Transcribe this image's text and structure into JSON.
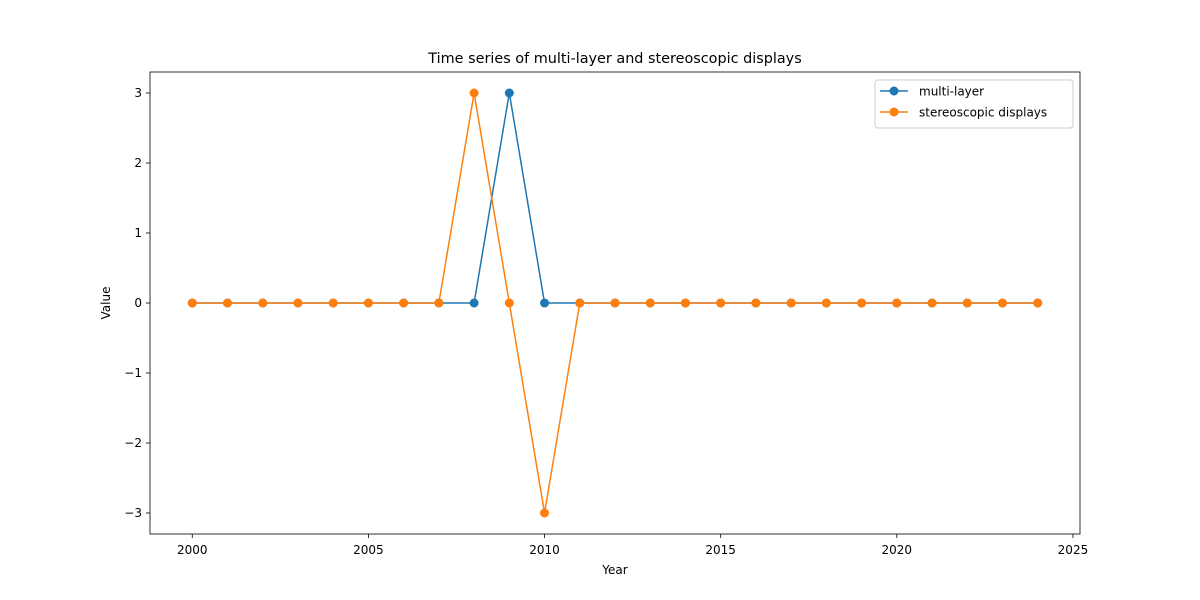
{
  "chart_data": {
    "type": "line",
    "title": "Time series of multi-layer and stereoscopic displays",
    "xlabel": "Year",
    "ylabel": "Value",
    "xlim": [
      1998.8,
      2025.2
    ],
    "ylim": [
      -3.3,
      3.3
    ],
    "xticks": [
      2000,
      2005,
      2010,
      2015,
      2020,
      2025
    ],
    "yticks": [
      3,
      2,
      1,
      0,
      -1,
      -2,
      -3
    ],
    "ytick_labels": [
      "3",
      "2",
      "1",
      "0",
      "−1",
      "−2",
      "−3"
    ],
    "grid": false,
    "legend_position": "top-right",
    "x": [
      2000,
      2001,
      2002,
      2003,
      2004,
      2005,
      2006,
      2007,
      2008,
      2009,
      2010,
      2011,
      2012,
      2013,
      2014,
      2015,
      2016,
      2017,
      2018,
      2019,
      2020,
      2021,
      2022,
      2023,
      2024
    ],
    "series": [
      {
        "name": "multi-layer",
        "color": "#1f77b4",
        "marker": "circle",
        "values": [
          0,
          0,
          0,
          0,
          0,
          0,
          0,
          0,
          0,
          3,
          0,
          0,
          0,
          0,
          0,
          0,
          0,
          0,
          0,
          0,
          0,
          0,
          0,
          0,
          0
        ]
      },
      {
        "name": "stereoscopic displays",
        "color": "#ff7f0e",
        "marker": "circle",
        "values": [
          0,
          0,
          0,
          0,
          0,
          0,
          0,
          0,
          3,
          0,
          -3,
          0,
          0,
          0,
          0,
          0,
          0,
          0,
          0,
          0,
          0,
          0,
          0,
          0,
          0
        ]
      }
    ]
  }
}
